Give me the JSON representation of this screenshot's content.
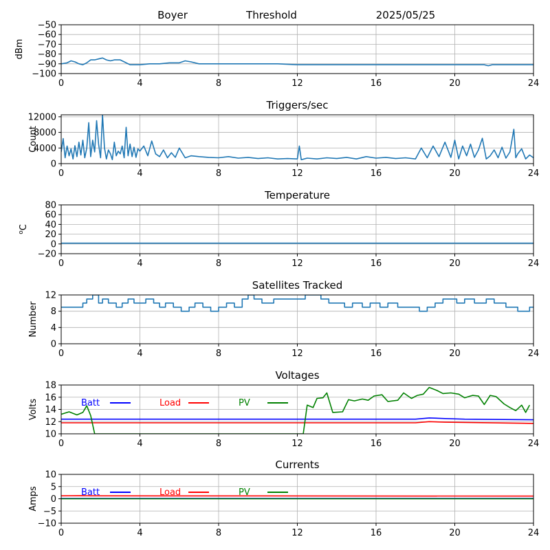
{
  "header": {
    "station": "Boyer",
    "mode": "Threshold",
    "date": "2025/05/25"
  },
  "chart_data": [
    {
      "type": "line",
      "title": "",
      "ylabel": "dBm",
      "xlim": [
        0,
        24
      ],
      "ylim": [
        -100,
        -50
      ],
      "xticks": [
        "0",
        "4",
        "8",
        "12",
        "16",
        "20",
        "24"
      ],
      "yticks": [
        "-100",
        "-90",
        "-80",
        "-70",
        "-60",
        "-50"
      ],
      "grid": true,
      "series": [
        {
          "color": "#1f77b4",
          "x": [
            0,
            0.3,
            0.5,
            0.7,
            0.9,
            1.1,
            1.3,
            1.5,
            1.7,
            1.9,
            2.1,
            2.3,
            2.5,
            2.7,
            3.0,
            3.3,
            3.5,
            3.7,
            4.0,
            4.5,
            5.0,
            5.5,
            6.0,
            6.3,
            6.6,
            7.0,
            7.5,
            8.0,
            9.0,
            10.0,
            11.0,
            12.0,
            13.0,
            14.0,
            15.0,
            16.0,
            17.0,
            18.0,
            19.0,
            20.0,
            21.0,
            21.5,
            21.7,
            21.9,
            22.5,
            23.0,
            24.0
          ],
          "y": [
            -90,
            -89,
            -87,
            -88,
            -90,
            -91,
            -89,
            -86,
            -86,
            -85,
            -84,
            -86,
            -87,
            -86,
            -86,
            -89,
            -91,
            -91,
            -91,
            -90,
            -90,
            -89,
            -89,
            -87,
            -88,
            -90,
            -90,
            -90,
            -90,
            -90,
            -90,
            -91,
            -91,
            -91,
            -91,
            -91,
            -91,
            -91,
            -91,
            -91,
            -91,
            -91,
            -92,
            -91,
            -91,
            -91,
            -91
          ]
        }
      ]
    },
    {
      "type": "line",
      "title": "Triggers/sec",
      "ylabel": "Count",
      "xlim": [
        0,
        24
      ],
      "ylim": [
        0,
        12500
      ],
      "xticks": [
        "0",
        "4",
        "8",
        "12",
        "16",
        "20",
        "24"
      ],
      "yticks": [
        "0",
        "4000",
        "8000",
        "12000"
      ],
      "grid": true,
      "series": [
        {
          "color": "#1f77b4",
          "x": [
            0,
            0.1,
            0.2,
            0.3,
            0.4,
            0.5,
            0.6,
            0.7,
            0.8,
            0.9,
            1.0,
            1.1,
            1.2,
            1.3,
            1.4,
            1.5,
            1.6,
            1.7,
            1.8,
            1.9,
            2.0,
            2.1,
            2.2,
            2.3,
            2.4,
            2.5,
            2.6,
            2.7,
            2.8,
            2.9,
            3.0,
            3.1,
            3.2,
            3.3,
            3.4,
            3.5,
            3.6,
            3.7,
            3.8,
            3.9,
            4.0,
            4.2,
            4.4,
            4.6,
            4.8,
            5.0,
            5.2,
            5.4,
            5.6,
            5.8,
            6.0,
            6.3,
            6.6,
            7.0,
            7.5,
            8.0,
            8.5,
            9.0,
            9.5,
            10.0,
            10.5,
            11.0,
            11.5,
            12.0,
            12.1,
            12.2,
            12.5,
            13.0,
            13.5,
            14.0,
            14.5,
            15.0,
            15.5,
            16.0,
            16.5,
            17.0,
            17.5,
            18.0,
            18.3,
            18.6,
            18.9,
            19.2,
            19.5,
            19.8,
            20.0,
            20.2,
            20.4,
            20.6,
            20.8,
            21.0,
            21.2,
            21.4,
            21.6,
            21.8,
            22.0,
            22.2,
            22.4,
            22.6,
            22.8,
            23.0,
            23.1,
            23.2,
            23.4,
            23.6,
            23.8,
            24.0
          ],
          "y": [
            3000,
            6400,
            1500,
            4500,
            2000,
            3800,
            1200,
            4600,
            1800,
            5500,
            2200,
            6000,
            1500,
            4000,
            10500,
            1800,
            6000,
            3000,
            11000,
            5000,
            1500,
            12500,
            4000,
            1200,
            3500,
            2500,
            1000,
            5500,
            2000,
            3200,
            2500,
            4500,
            1500,
            9300,
            2000,
            5000,
            1800,
            4200,
            1600,
            3800,
            3200,
            4500,
            2000,
            5800,
            2500,
            1800,
            3500,
            1500,
            2800,
            1600,
            4000,
            1500,
            2000,
            1800,
            1600,
            1500,
            1800,
            1400,
            1600,
            1300,
            1500,
            1200,
            1300,
            1200,
            4500,
            1000,
            1400,
            1200,
            1500,
            1300,
            1600,
            1200,
            1800,
            1400,
            1600,
            1300,
            1500,
            1200,
            4000,
            1500,
            4500,
            1800,
            5500,
            1600,
            6000,
            1200,
            4500,
            2000,
            5000,
            1600,
            3500,
            6500,
            1200,
            2000,
            3500,
            1500,
            4200,
            1400,
            3000,
            8800,
            1500,
            2500,
            3800,
            1200,
            2200,
            1500
          ]
        }
      ]
    },
    {
      "type": "line",
      "title": "Temperature",
      "ylabel": "oC",
      "xlim": [
        0,
        24
      ],
      "ylim": [
        -20,
        80
      ],
      "xticks": [
        "0",
        "4",
        "8",
        "12",
        "16",
        "20",
        "24"
      ],
      "yticks": [
        "-20",
        "0",
        "20",
        "40",
        "60",
        "80"
      ],
      "grid": true,
      "series": [
        {
          "color": "#1f77b4",
          "x": [
            0,
            24
          ],
          "y": [
            1.5,
            1.5
          ]
        }
      ]
    },
    {
      "type": "line",
      "title": "Satellites Tracked",
      "ylabel": "Number",
      "xlim": [
        0,
        24
      ],
      "ylim": [
        0,
        12
      ],
      "xticks": [
        "0",
        "4",
        "8",
        "12",
        "16",
        "20",
        "24"
      ],
      "yticks": [
        "0",
        "4",
        "8",
        "12"
      ],
      "grid": true,
      "series": [
        {
          "color": "#1f77b4",
          "step": true,
          "x": [
            0,
            1.1,
            1.3,
            1.6,
            1.9,
            2.1,
            2.4,
            2.8,
            3.1,
            3.4,
            3.7,
            4.3,
            4.7,
            5.0,
            5.3,
            5.7,
            6.1,
            6.5,
            6.8,
            7.2,
            7.6,
            8.0,
            8.4,
            8.8,
            9.2,
            9.5,
            9.8,
            10.2,
            10.8,
            11.3,
            12.0,
            12.4,
            12.8,
            13.2,
            13.6,
            14.0,
            14.4,
            14.8,
            15.3,
            15.7,
            16.2,
            16.6,
            17.1,
            17.6,
            18.2,
            18.6,
            19.0,
            19.4,
            20.1,
            20.5,
            21.0,
            21.6,
            22.0,
            22.6,
            23.2,
            23.8,
            24.0
          ],
          "y": [
            9,
            10,
            11,
            12,
            10,
            11,
            10,
            9,
            10,
            11,
            10,
            11,
            10,
            9,
            10,
            9,
            8,
            9,
            10,
            9,
            8,
            9,
            10,
            9,
            11,
            12,
            11,
            10,
            11,
            11,
            11,
            12,
            12,
            11,
            10,
            10,
            9,
            10,
            9,
            10,
            9,
            10,
            9,
            9,
            8,
            9,
            10,
            11,
            10,
            11,
            10,
            11,
            10,
            9,
            8,
            9,
            9
          ]
        }
      ]
    },
    {
      "type": "line",
      "title": "Voltages",
      "ylabel": "Volts",
      "xlim": [
        0,
        24
      ],
      "ylim": [
        10,
        18
      ],
      "xticks": [
        "0",
        "4",
        "8",
        "12",
        "16",
        "20",
        "24"
      ],
      "yticks": [
        "10",
        "12",
        "14",
        "16",
        "18"
      ],
      "grid": true,
      "legend": "top-left",
      "series": [
        {
          "name": "Batt",
          "color": "#0000ff",
          "x": [
            0,
            18.0,
            18.7,
            19.5,
            20.5,
            24
          ],
          "y": [
            12.4,
            12.4,
            12.6,
            12.5,
            12.4,
            12.3
          ]
        },
        {
          "name": "Load",
          "color": "#ff0000",
          "x": [
            0,
            18.0,
            18.7,
            19.5,
            24
          ],
          "y": [
            11.8,
            11.8,
            12.0,
            11.9,
            11.7
          ]
        },
        {
          "name": "PV",
          "color": "#008000",
          "x": [
            0,
            0.4,
            0.8,
            1.1,
            1.3,
            1.5,
            1.7,
            12.3,
            12.5,
            12.8,
            13.0,
            13.3,
            13.5,
            13.8,
            14.3,
            14.6,
            14.9,
            15.3,
            15.6,
            15.9,
            16.3,
            16.6,
            17.1,
            17.4,
            17.8,
            18.1,
            18.4,
            18.7,
            19.1,
            19.4,
            19.8,
            20.2,
            20.5,
            20.9,
            21.2,
            21.5,
            21.8,
            22.1,
            22.5,
            22.8,
            23.1,
            23.4,
            23.6,
            23.8
          ],
          "y": [
            13.2,
            13.6,
            13.1,
            13.5,
            14.6,
            13.0,
            10.0,
            10.0,
            14.7,
            14.3,
            15.8,
            15.9,
            16.7,
            13.5,
            13.6,
            15.6,
            15.4,
            15.7,
            15.5,
            16.2,
            16.4,
            15.3,
            15.5,
            16.7,
            15.8,
            16.3,
            16.5,
            17.6,
            17.1,
            16.6,
            16.7,
            16.5,
            15.9,
            16.3,
            16.2,
            14.8,
            16.3,
            16.1,
            14.9,
            14.3,
            13.8,
            14.7,
            13.5,
            14.7
          ]
        }
      ]
    },
    {
      "type": "line",
      "title": "Currents",
      "ylabel": "Amps",
      "xlim": [
        0,
        24
      ],
      "ylim": [
        -10,
        10
      ],
      "xticks": [
        "0",
        "4",
        "8",
        "12",
        "16",
        "20",
        "24"
      ],
      "yticks": [
        "-10",
        "-5",
        "0",
        "5",
        "10"
      ],
      "grid": true,
      "legend": "top-left",
      "series": [
        {
          "name": "Batt",
          "color": "#0000ff",
          "x": [
            0,
            24
          ],
          "y": [
            0.1,
            0.1
          ]
        },
        {
          "name": "Load",
          "color": "#ff0000",
          "x": [
            0,
            1.0,
            1.5,
            24
          ],
          "y": [
            1.2,
            1.3,
            1.2,
            1.1
          ]
        },
        {
          "name": "PV",
          "color": "#008000",
          "x": [
            0,
            24
          ],
          "y": [
            0.0,
            0.0
          ]
        }
      ]
    }
  ]
}
